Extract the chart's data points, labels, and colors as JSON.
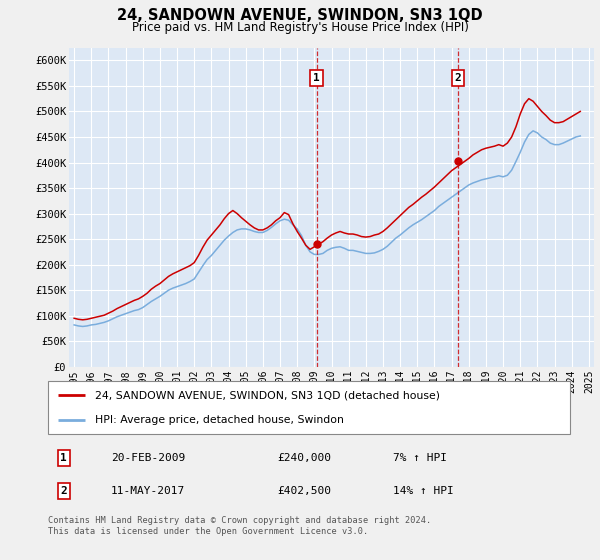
{
  "title": "24, SANDOWN AVENUE, SWINDON, SN3 1QD",
  "subtitle": "Price paid vs. HM Land Registry's House Price Index (HPI)",
  "ylabel_ticks": [
    "£0",
    "£50K",
    "£100K",
    "£150K",
    "£200K",
    "£250K",
    "£300K",
    "£350K",
    "£400K",
    "£450K",
    "£500K",
    "£550K",
    "£600K"
  ],
  "ytick_values": [
    0,
    50000,
    100000,
    150000,
    200000,
    250000,
    300000,
    350000,
    400000,
    450000,
    500000,
    550000,
    600000
  ],
  "ylim": [
    0,
    625000
  ],
  "xlim_start": 1994.7,
  "xlim_end": 2025.3,
  "xticks": [
    1995,
    1996,
    1997,
    1998,
    1999,
    2000,
    2001,
    2002,
    2003,
    2004,
    2005,
    2006,
    2007,
    2008,
    2009,
    2010,
    2011,
    2012,
    2013,
    2014,
    2015,
    2016,
    2017,
    2018,
    2019,
    2020,
    2021,
    2022,
    2023,
    2024,
    2025
  ],
  "fig_bg_color": "#f0f0f0",
  "plot_bg_color": "#dde8f5",
  "grid_color": "#ffffff",
  "red_line_color": "#cc0000",
  "blue_line_color": "#7aaddd",
  "transaction1": {
    "label": "1",
    "date": "20-FEB-2009",
    "price": 240000,
    "pct": "7%",
    "year": 2009.13
  },
  "transaction2": {
    "label": "2",
    "date": "11-MAY-2017",
    "price": 402500,
    "pct": "14%",
    "year": 2017.37
  },
  "legend_red": "24, SANDOWN AVENUE, SWINDON, SN3 1QD (detached house)",
  "legend_blue": "HPI: Average price, detached house, Swindon",
  "footer": "Contains HM Land Registry data © Crown copyright and database right 2024.\nThis data is licensed under the Open Government Licence v3.0.",
  "hpi_data": {
    "years": [
      1995.0,
      1995.25,
      1995.5,
      1995.75,
      1996.0,
      1996.25,
      1996.5,
      1996.75,
      1997.0,
      1997.25,
      1997.5,
      1997.75,
      1998.0,
      1998.25,
      1998.5,
      1998.75,
      1999.0,
      1999.25,
      1999.5,
      1999.75,
      2000.0,
      2000.25,
      2000.5,
      2000.75,
      2001.0,
      2001.25,
      2001.5,
      2001.75,
      2002.0,
      2002.25,
      2002.5,
      2002.75,
      2003.0,
      2003.25,
      2003.5,
      2003.75,
      2004.0,
      2004.25,
      2004.5,
      2004.75,
      2005.0,
      2005.25,
      2005.5,
      2005.75,
      2006.0,
      2006.25,
      2006.5,
      2006.75,
      2007.0,
      2007.25,
      2007.5,
      2007.75,
      2008.0,
      2008.25,
      2008.5,
      2008.75,
      2009.0,
      2009.25,
      2009.5,
      2009.75,
      2010.0,
      2010.25,
      2010.5,
      2010.75,
      2011.0,
      2011.25,
      2011.5,
      2011.75,
      2012.0,
      2012.25,
      2012.5,
      2012.75,
      2013.0,
      2013.25,
      2013.5,
      2013.75,
      2014.0,
      2014.25,
      2014.5,
      2014.75,
      2015.0,
      2015.25,
      2015.5,
      2015.75,
      2016.0,
      2016.25,
      2016.5,
      2016.75,
      2017.0,
      2017.25,
      2017.5,
      2017.75,
      2018.0,
      2018.25,
      2018.5,
      2018.75,
      2019.0,
      2019.25,
      2019.5,
      2019.75,
      2020.0,
      2020.25,
      2020.5,
      2020.75,
      2021.0,
      2021.25,
      2021.5,
      2021.75,
      2022.0,
      2022.25,
      2022.5,
      2022.75,
      2023.0,
      2023.25,
      2023.5,
      2023.75,
      2024.0,
      2024.25,
      2024.5
    ],
    "values": [
      82000,
      80000,
      79000,
      80000,
      82000,
      83000,
      85000,
      87000,
      90000,
      94000,
      98000,
      101000,
      104000,
      107000,
      110000,
      112000,
      116000,
      122000,
      128000,
      133000,
      138000,
      144000,
      150000,
      154000,
      157000,
      160000,
      163000,
      167000,
      172000,
      185000,
      198000,
      210000,
      218000,
      228000,
      238000,
      248000,
      256000,
      263000,
      268000,
      270000,
      270000,
      268000,
      265000,
      263000,
      263000,
      267000,
      273000,
      280000,
      286000,
      289000,
      287000,
      278000,
      270000,
      257000,
      238000,
      225000,
      220000,
      220000,
      222000,
      228000,
      232000,
      234000,
      235000,
      232000,
      228000,
      228000,
      226000,
      224000,
      222000,
      222000,
      223000,
      226000,
      230000,
      236000,
      244000,
      252000,
      258000,
      265000,
      272000,
      278000,
      283000,
      288000,
      294000,
      300000,
      306000,
      314000,
      320000,
      326000,
      332000,
      338000,
      344000,
      350000,
      356000,
      360000,
      363000,
      366000,
      368000,
      370000,
      372000,
      374000,
      372000,
      375000,
      385000,
      402000,
      420000,
      440000,
      455000,
      462000,
      458000,
      450000,
      445000,
      438000,
      435000,
      435000,
      438000,
      442000,
      446000,
      450000,
      452000
    ]
  },
  "red_data": {
    "years": [
      1995.0,
      1995.25,
      1995.5,
      1995.75,
      1996.0,
      1996.25,
      1996.5,
      1996.75,
      1997.0,
      1997.25,
      1997.5,
      1997.75,
      1998.0,
      1998.25,
      1998.5,
      1998.75,
      1999.0,
      1999.25,
      1999.5,
      1999.75,
      2000.0,
      2000.25,
      2000.5,
      2000.75,
      2001.0,
      2001.25,
      2001.5,
      2001.75,
      2002.0,
      2002.25,
      2002.5,
      2002.75,
      2003.0,
      2003.25,
      2003.5,
      2003.75,
      2004.0,
      2004.25,
      2004.5,
      2004.75,
      2005.0,
      2005.25,
      2005.5,
      2005.75,
      2006.0,
      2006.25,
      2006.5,
      2006.75,
      2007.0,
      2007.25,
      2007.5,
      2007.75,
      2008.0,
      2008.25,
      2008.5,
      2008.75,
      2009.0,
      2009.25,
      2009.5,
      2009.75,
      2010.0,
      2010.25,
      2010.5,
      2010.75,
      2011.0,
      2011.25,
      2011.5,
      2011.75,
      2012.0,
      2012.25,
      2012.5,
      2012.75,
      2013.0,
      2013.25,
      2013.5,
      2013.75,
      2014.0,
      2014.25,
      2014.5,
      2014.75,
      2015.0,
      2015.25,
      2015.5,
      2015.75,
      2016.0,
      2016.25,
      2016.5,
      2016.75,
      2017.0,
      2017.25,
      2017.5,
      2017.75,
      2018.0,
      2018.25,
      2018.5,
      2018.75,
      2019.0,
      2019.25,
      2019.5,
      2019.75,
      2020.0,
      2020.25,
      2020.5,
      2020.75,
      2021.0,
      2021.25,
      2021.5,
      2021.75,
      2022.0,
      2022.25,
      2022.5,
      2022.75,
      2023.0,
      2023.25,
      2023.5,
      2023.75,
      2024.0,
      2024.25,
      2024.5
    ],
    "values": [
      95000,
      93000,
      92000,
      93000,
      95000,
      97000,
      99000,
      101000,
      105000,
      109000,
      114000,
      118000,
      122000,
      126000,
      130000,
      133000,
      138000,
      144000,
      152000,
      158000,
      163000,
      170000,
      177000,
      182000,
      186000,
      190000,
      194000,
      198000,
      204000,
      218000,
      234000,
      248000,
      258000,
      268000,
      278000,
      290000,
      300000,
      306000,
      300000,
      292000,
      285000,
      278000,
      272000,
      268000,
      268000,
      272000,
      278000,
      286000,
      292000,
      302000,
      298000,
      280000,
      265000,
      252000,
      238000,
      230000,
      235000,
      240000,
      245000,
      252000,
      258000,
      262000,
      265000,
      262000,
      260000,
      260000,
      258000,
      255000,
      254000,
      255000,
      258000,
      260000,
      265000,
      272000,
      280000,
      288000,
      296000,
      304000,
      312000,
      318000,
      325000,
      332000,
      338000,
      345000,
      352000,
      360000,
      368000,
      376000,
      384000,
      390000,
      396000,
      402000,
      408000,
      415000,
      420000,
      425000,
      428000,
      430000,
      432000,
      435000,
      432000,
      438000,
      450000,
      470000,
      495000,
      515000,
      525000,
      520000,
      510000,
      500000,
      492000,
      483000,
      478000,
      478000,
      480000,
      485000,
      490000,
      495000,
      500000
    ]
  }
}
